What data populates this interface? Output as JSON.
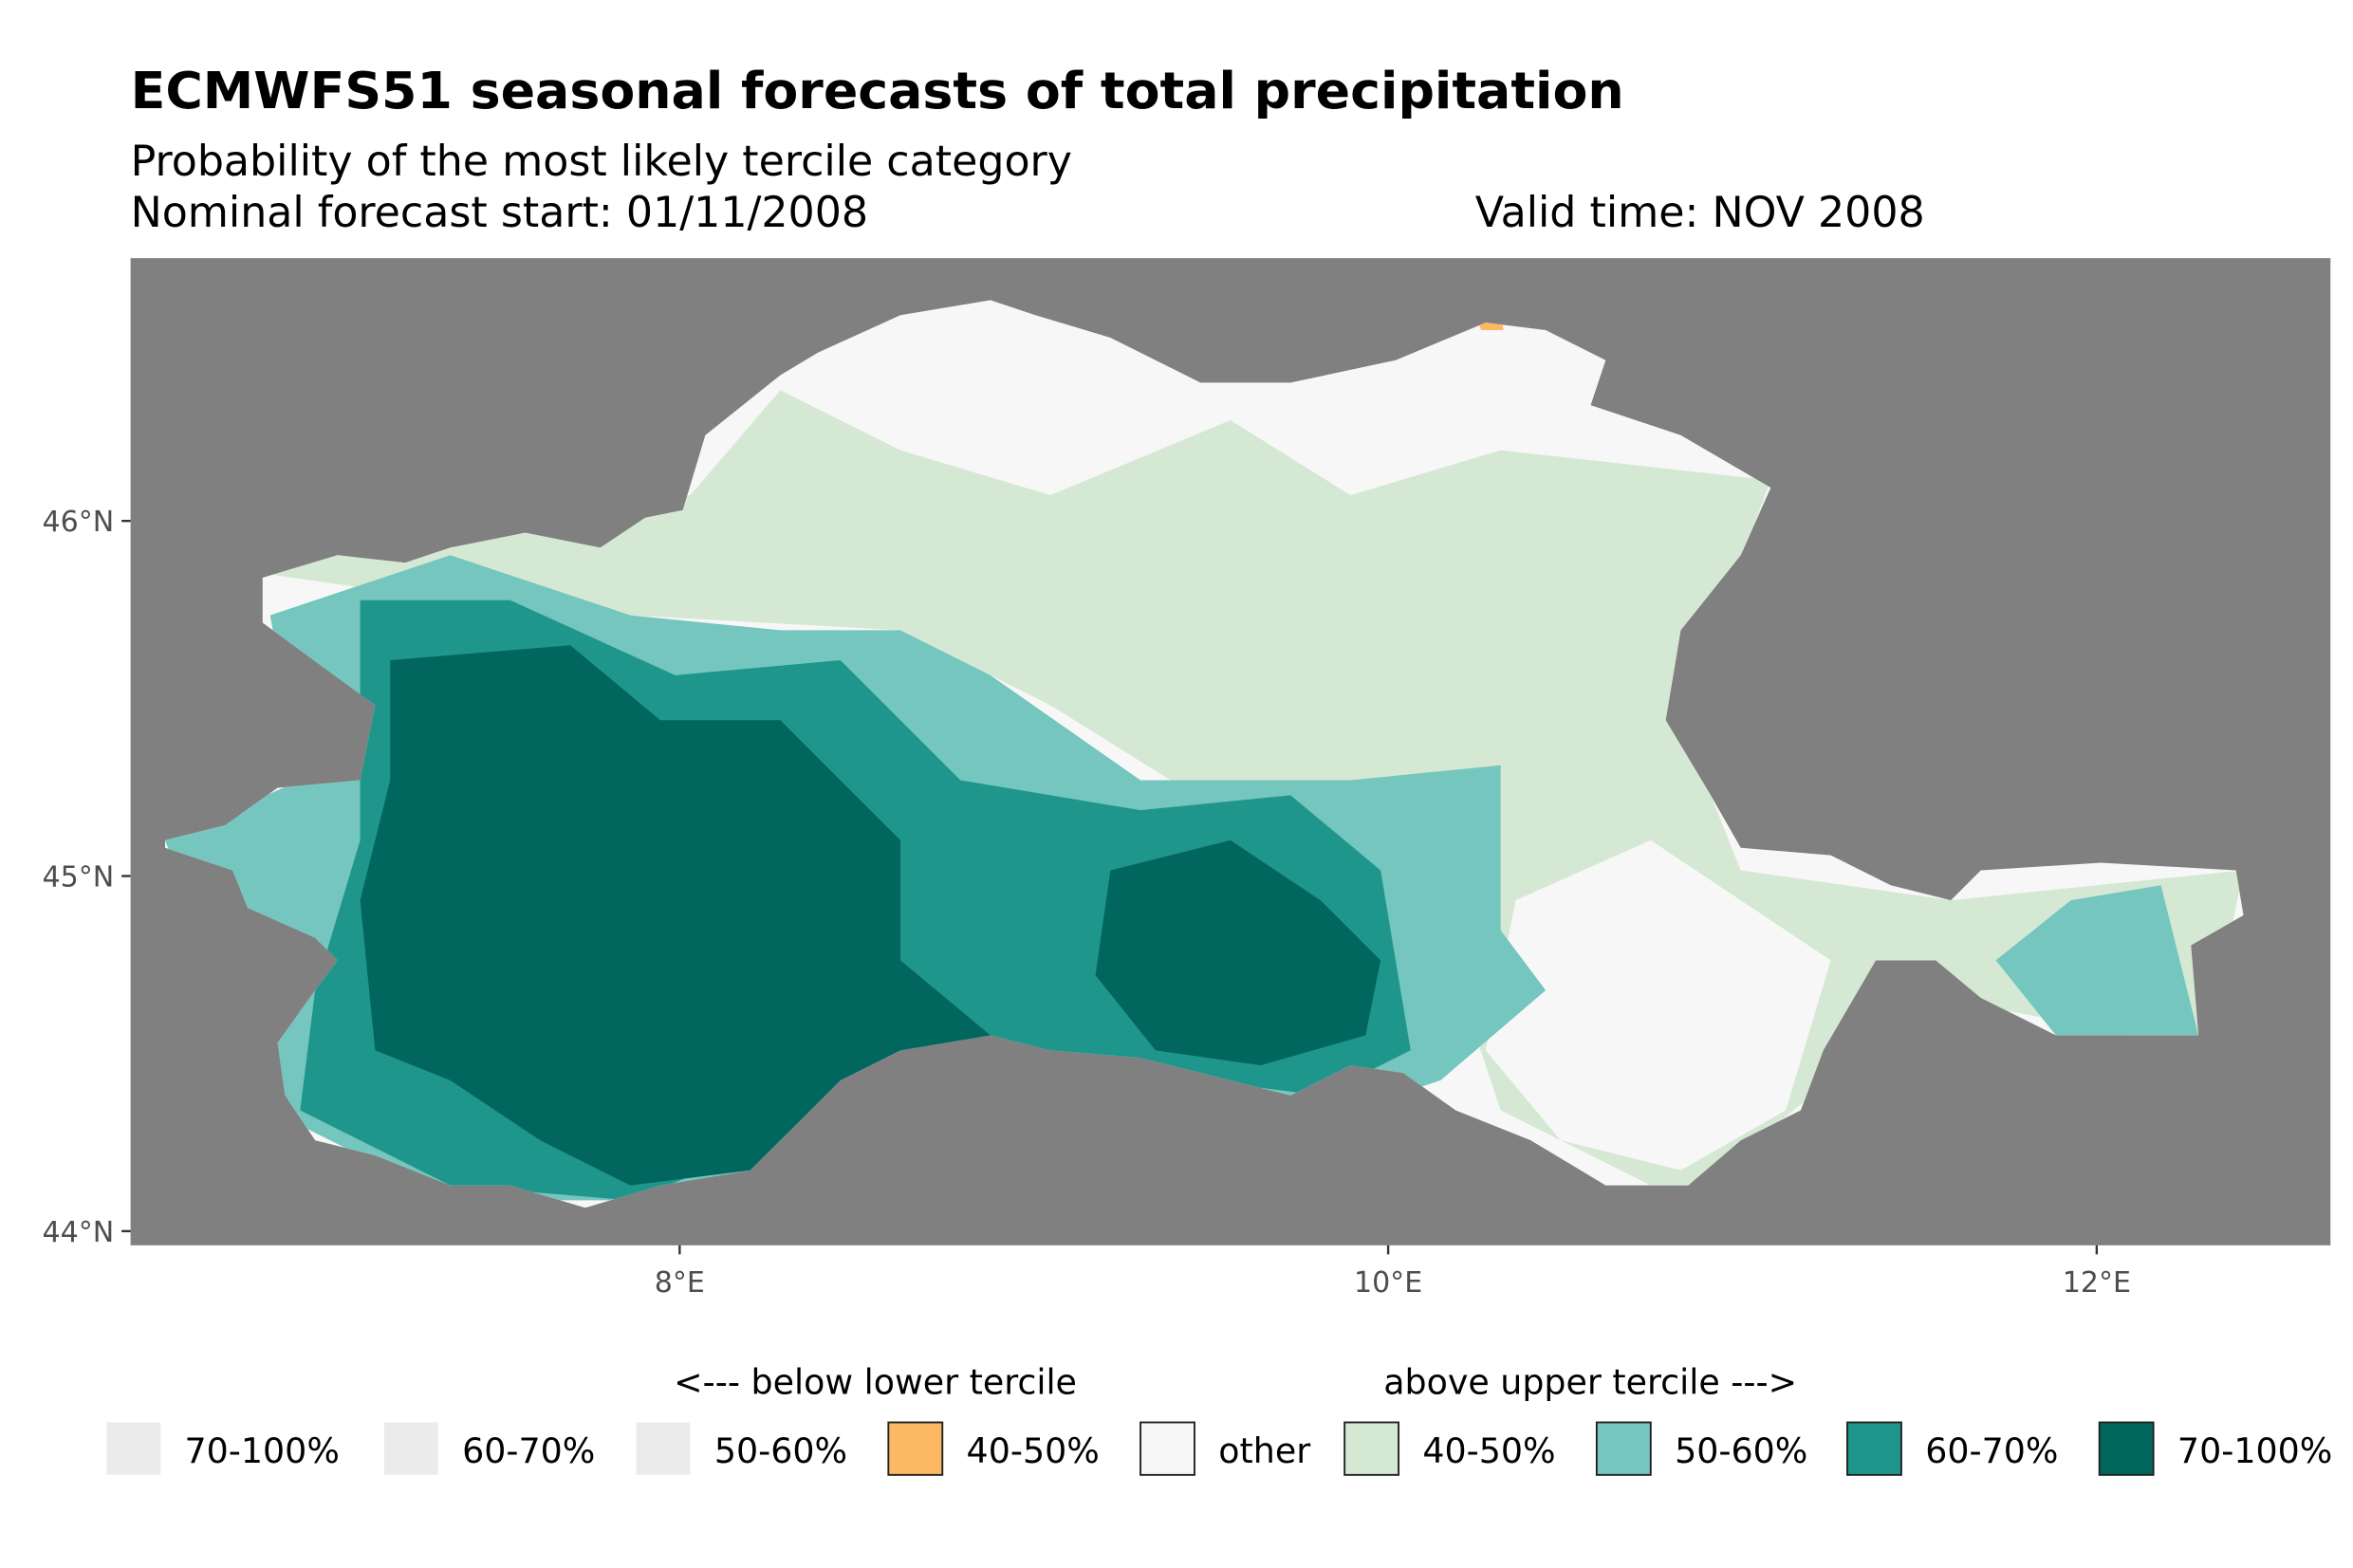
{
  "chart_data": {
    "type": "heatmap",
    "title": "ECMWFS51 seasonal forecasts of total precipitation",
    "subtitle": "Probability of the most likely tercile category",
    "forecast_start": "Nominal forecast start: 01/11/2008",
    "valid_time": "Valid time: NOV 2008",
    "xlim": [
      6.45,
      12.66
    ],
    "ylim": [
      43.96,
      46.74
    ],
    "x_ticks": [
      {
        "value": 8,
        "label": "8°E"
      },
      {
        "value": 10,
        "label": "10°E"
      },
      {
        "value": 12,
        "label": "12°E"
      }
    ],
    "y_ticks": [
      {
        "value": 44,
        "label": "44°N"
      },
      {
        "value": 45,
        "label": "45°N"
      },
      {
        "value": 46,
        "label": "46°N"
      }
    ],
    "background_color": "#808080",
    "legend": {
      "below_header": "<--- below lower tercile",
      "above_header": "above upper tercile --->",
      "items": [
        {
          "label": "70-100%",
          "color": "#ebebeb",
          "outlined": false
        },
        {
          "label": "60-70%",
          "color": "#ebebeb",
          "outlined": false
        },
        {
          "label": "50-60%",
          "color": "#ebebeb",
          "outlined": false
        },
        {
          "label": "40-50%",
          "color": "#fdb863",
          "outlined": true
        },
        {
          "label": "other",
          "color": "#f7f7f7",
          "outlined": true
        },
        {
          "label": "40-50%",
          "color": "#d5e8d4",
          "outlined": true
        },
        {
          "label": "50-60%",
          "color": "#74c6bf",
          "outlined": true
        },
        {
          "label": "60-70%",
          "color": "#1f968b",
          "outlined": true
        },
        {
          "label": "70-100%",
          "color": "#01665e",
          "outlined": true
        }
      ]
    }
  }
}
